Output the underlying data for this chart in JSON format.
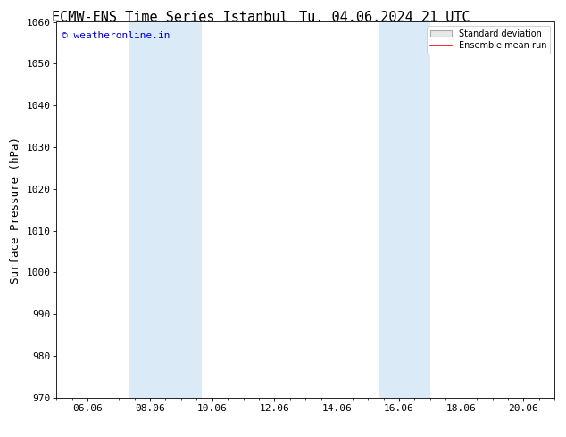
{
  "title_left": "ECMW-ENS Time Series Istanbul",
  "title_right": "Tu. 04.06.2024 21 UTC",
  "ylabel": "Surface Pressure (hPa)",
  "ylim": [
    970,
    1060
  ],
  "yticks": [
    970,
    980,
    990,
    1000,
    1010,
    1020,
    1030,
    1040,
    1050,
    1060
  ],
  "xtick_labels": [
    "06.06",
    "08.06",
    "10.06",
    "12.06",
    "14.06",
    "16.06",
    "18.06",
    "20.06"
  ],
  "xtick_positions": [
    1.0,
    3.0,
    5.0,
    7.0,
    9.0,
    11.0,
    13.0,
    15.0
  ],
  "xlim": [
    0.0,
    16.0
  ],
  "shaded_regions": [
    {
      "x_start": 2.333,
      "x_end": 4.667
    },
    {
      "x_start": 10.333,
      "x_end": 12.0
    }
  ],
  "shade_color": "#daeaf7",
  "shade_alpha": 1.0,
  "background_color": "#ffffff",
  "watermark_text": "© weatheronline.in",
  "watermark_color": "#0000cc",
  "legend_std_label": "Standard deviation",
  "legend_mean_label": "Ensemble mean run",
  "legend_std_facecolor": "#e8e8e8",
  "legend_std_edgecolor": "#aaaaaa",
  "legend_mean_color": "#ff0000",
  "title_fontsize": 11,
  "axis_fontsize": 8,
  "ylabel_fontsize": 9,
  "watermark_fontsize": 8
}
